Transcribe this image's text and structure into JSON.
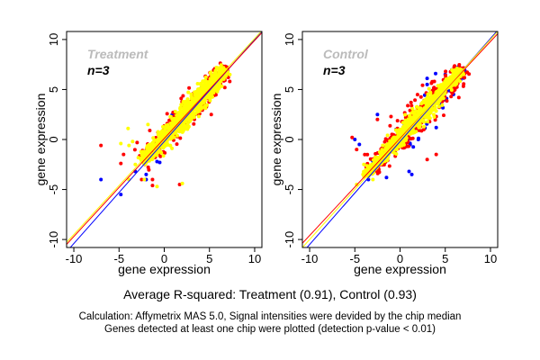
{
  "chart_data": [
    {
      "type": "scatter",
      "title": "Treatment",
      "subtitle": "n=3",
      "xlabel": "gene expression",
      "ylabel": "gene expression",
      "xlim": [
        -10.8,
        10.8
      ],
      "ylim": [
        -10.8,
        10.8
      ],
      "xticks": [
        "-10",
        "-5",
        "0",
        "5",
        "10"
      ],
      "yticks": [
        "-10",
        "-5",
        "0",
        "5",
        "10"
      ],
      "grid": false,
      "series": [
        {
          "color": "#0000ff",
          "cloud": {
            "from": -2.5,
            "to": 7,
            "spread": 0.6
          },
          "points": [
            [
              -7,
              -4
            ],
            [
              -4.8,
              -5.5
            ],
            [
              -2,
              -3.5
            ],
            [
              -2,
              -4
            ],
            [
              -0.5,
              -2.3
            ],
            [
              -0.8,
              -2.2
            ],
            [
              -3.2,
              -3.2
            ]
          ],
          "fit": {
            "slope": 1.02,
            "intercept": -0.2
          }
        },
        {
          "color": "#ff0000",
          "cloud": {
            "from": -2.5,
            "to": 7,
            "spread": 0.9
          },
          "points": [
            [
              -7,
              -0.6
            ],
            [
              -4.5,
              -1.5
            ],
            [
              -4.8,
              -2.4
            ],
            [
              -2.5,
              -4
            ],
            [
              -1.3,
              -4
            ],
            [
              -1.3,
              -4.6
            ],
            [
              1.7,
              -4.5
            ],
            [
              -2.4,
              -1.1
            ],
            [
              -1.6,
              0.9
            ],
            [
              -3,
              -0.3
            ],
            [
              2.2,
              3.5
            ],
            [
              4.6,
              3.2
            ],
            [
              5.2,
              2.5
            ]
          ],
          "fit": {
            "slope": 0.98,
            "intercept": 0.1
          }
        },
        {
          "color": "#ffff00",
          "cloud": {
            "from": -2.5,
            "to": 6.8,
            "spread": 0.75
          },
          "points": [
            [
              -4,
              1.1
            ],
            [
              -3.9,
              -0.6
            ],
            [
              -4.8,
              -0.4
            ],
            [
              -3.9,
              -4
            ],
            [
              -2.2,
              -4
            ],
            [
              -0.8,
              -4.7
            ],
            [
              2,
              -4.4
            ],
            [
              -3.2,
              -2.5
            ],
            [
              -3.5,
              -0.2
            ],
            [
              -1.8,
              1.5
            ]
          ],
          "fit": {
            "slope": 0.98,
            "intercept": 0.3
          }
        }
      ]
    },
    {
      "type": "scatter",
      "title": "Control",
      "subtitle": "n=3",
      "xlabel": "gene expression",
      "ylabel": "gene expression",
      "xlim": [
        -10.8,
        10.8
      ],
      "ylim": [
        -10.8,
        10.8
      ],
      "xticks": [
        "-10",
        "-5",
        "0",
        "5",
        "10"
      ],
      "yticks": [
        "-10",
        "-5",
        "0",
        "5",
        "10"
      ],
      "grid": false,
      "series": [
        {
          "color": "#0000ff",
          "cloud": {
            "from": -3,
            "to": 7,
            "spread": 1.4
          },
          "points": [
            [
              -5,
              0
            ],
            [
              -4.5,
              -0.5
            ],
            [
              -3.5,
              -4
            ],
            [
              -1.5,
              -3.8
            ],
            [
              1,
              -3.2
            ],
            [
              1.3,
              -3.5
            ],
            [
              -2.5,
              2.5
            ],
            [
              3,
              5.5
            ],
            [
              5,
              6.5
            ]
          ],
          "fit": {
            "slope": 1.03,
            "intercept": -0.2
          }
        },
        {
          "color": "#ff0000",
          "cloud": {
            "from": -3.5,
            "to": 7,
            "spread": 1.1
          },
          "points": [
            [
              -5.3,
              0.2
            ],
            [
              -4.8,
              -1
            ],
            [
              -4,
              -3.5
            ],
            [
              -2.5,
              2
            ],
            [
              -1,
              2.3
            ],
            [
              3,
              -2
            ],
            [
              4,
              -1.5
            ],
            [
              6.5,
              4.2
            ]
          ],
          "fit": {
            "slope": 0.97,
            "intercept": 0.1
          }
        },
        {
          "color": "#ffff00",
          "cloud": {
            "from": -4,
            "to": 6.8,
            "spread": 0.6
          },
          "points": [
            [
              -4,
              -2.5
            ],
            [
              -3.7,
              -3.2
            ],
            [
              -4.8,
              -4.5
            ],
            [
              -3,
              -4
            ]
          ],
          "fit": {
            "slope": 1.0,
            "intercept": 0.0
          }
        }
      ]
    }
  ],
  "caption": "Average R-squared: Treatment (0.91), Control (0.93)",
  "notes": [
    "Calculation: Affymetrix MAS 5.0, Signal intensities were devided by the chip median",
    "Genes detected at least one chip were plotted (detection p-value < 0.01)"
  ]
}
